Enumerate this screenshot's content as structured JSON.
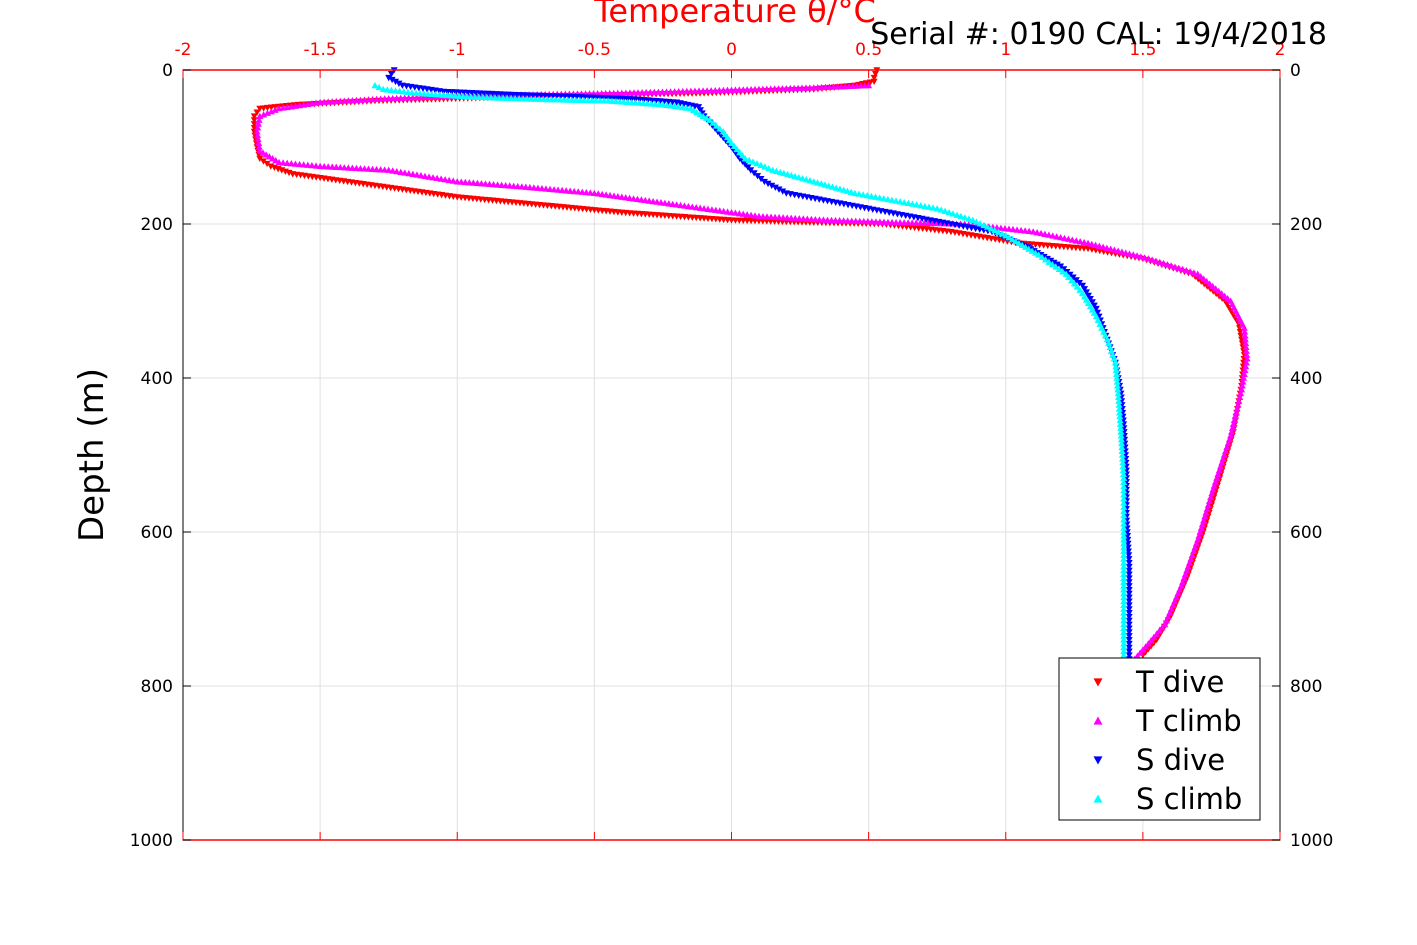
{
  "chart_data": {
    "type": "scatter",
    "title": "Temperature θ/°C",
    "serial_label": "Serial #: 0190  CAL: 19/4/2018",
    "ylabel": "Depth (m)",
    "xlim": [
      -2,
      2
    ],
    "ylim": [
      0,
      1000
    ],
    "y_reversed": true,
    "x_ticks": [
      "-2",
      "-1.5",
      "-1",
      "-0.5",
      "0",
      "0.5",
      "1",
      "1.5",
      "2"
    ],
    "y_ticks": [
      "0",
      "200",
      "400",
      "600",
      "800",
      "1000"
    ],
    "grid": true,
    "legend_position": "bottom-right",
    "colors": {
      "axis_top": "#ff0000",
      "t_dive": "#ff0000",
      "t_climb": "#ff00ff",
      "s_dive": "#0000ff",
      "s_climb": "#00ffff"
    },
    "series": [
      {
        "name": "T dive",
        "marker": "triangle-down",
        "color": "#ff0000",
        "x": [
          0.53,
          0.52,
          0.52,
          0.45,
          0.3,
          -0.1,
          -0.8,
          -1.3,
          -1.58,
          -1.72,
          -1.74,
          -1.74,
          -1.73,
          -1.72,
          -1.68,
          -1.6,
          -1.5,
          -1.3,
          -1.0,
          -0.7,
          -0.4,
          -0.2,
          0.0,
          0.3,
          0.55,
          0.8,
          1.05,
          1.3,
          1.5,
          1.68,
          1.8,
          1.85,
          1.87,
          1.86,
          1.83,
          1.78,
          1.72,
          1.66,
          1.6,
          1.55,
          1.5
        ],
        "y": [
          0,
          10,
          15,
          20,
          25,
          30,
          35,
          40,
          45,
          50,
          60,
          80,
          100,
          115,
          125,
          135,
          140,
          150,
          165,
          175,
          185,
          190,
          195,
          198,
          200,
          210,
          225,
          232,
          245,
          265,
          300,
          330,
          370,
          410,
          470,
          530,
          600,
          660,
          710,
          740,
          760
        ]
      },
      {
        "name": "T climb",
        "marker": "triangle-up",
        "color": "#ff00ff",
        "x": [
          0.5,
          0.3,
          0.0,
          -0.4,
          -0.9,
          -1.25,
          -1.5,
          -1.65,
          -1.72,
          -1.73,
          -1.72,
          -1.65,
          -1.5,
          -1.25,
          -1.0,
          -0.75,
          -0.5,
          -0.3,
          -0.1,
          0.1,
          0.35,
          0.6,
          0.85,
          1.1,
          1.3,
          1.52,
          1.7,
          1.82,
          1.87,
          1.88,
          1.86,
          1.82,
          1.76,
          1.7,
          1.64,
          1.58,
          1.52,
          1.47
        ],
        "y": [
          20,
          23,
          26,
          30,
          33,
          37,
          42,
          50,
          60,
          80,
          105,
          120,
          125,
          130,
          145,
          152,
          160,
          170,
          180,
          190,
          195,
          198,
          200,
          210,
          225,
          245,
          265,
          300,
          335,
          375,
          415,
          475,
          540,
          610,
          670,
          720,
          745,
          765
        ]
      },
      {
        "name": "S dive",
        "marker": "triangle-down",
        "color": "#0000ff",
        "x": [
          -1.23,
          -1.24,
          -1.25,
          -1.2,
          -1.05,
          -0.8,
          -0.55,
          -0.35,
          -0.2,
          -0.12,
          -0.1,
          -0.05,
          0.0,
          0.03,
          0.07,
          0.12,
          0.2,
          0.35,
          0.5,
          0.65,
          0.8,
          0.95,
          1.08,
          1.2,
          1.28,
          1.33,
          1.37,
          1.4,
          1.42,
          1.43,
          1.44,
          1.44,
          1.45,
          1.45,
          1.45,
          1.45
        ],
        "y": [
          0,
          5,
          10,
          20,
          28,
          32,
          35,
          38,
          42,
          48,
          60,
          80,
          100,
          115,
          130,
          145,
          160,
          170,
          180,
          190,
          200,
          210,
          230,
          255,
          280,
          310,
          350,
          380,
          420,
          460,
          520,
          580,
          640,
          700,
          740,
          765
        ]
      },
      {
        "name": "S climb",
        "marker": "triangle-up",
        "color": "#00ffff",
        "x": [
          -1.3,
          -1.27,
          -1.15,
          -0.95,
          -0.7,
          -0.45,
          -0.25,
          -0.15,
          -0.08,
          -0.03,
          0.0,
          0.05,
          0.15,
          0.3,
          0.45,
          0.6,
          0.75,
          0.88,
          1.0,
          1.12,
          1.22,
          1.28,
          1.33,
          1.37,
          1.4,
          1.41,
          1.42,
          1.43,
          1.43,
          1.43,
          1.43,
          1.43
        ],
        "y": [
          20,
          25,
          30,
          35,
          38,
          40,
          45,
          50,
          65,
          80,
          95,
          115,
          130,
          145,
          160,
          170,
          180,
          195,
          215,
          240,
          265,
          290,
          320,
          350,
          380,
          420,
          470,
          530,
          600,
          660,
          720,
          765
        ]
      }
    ]
  }
}
